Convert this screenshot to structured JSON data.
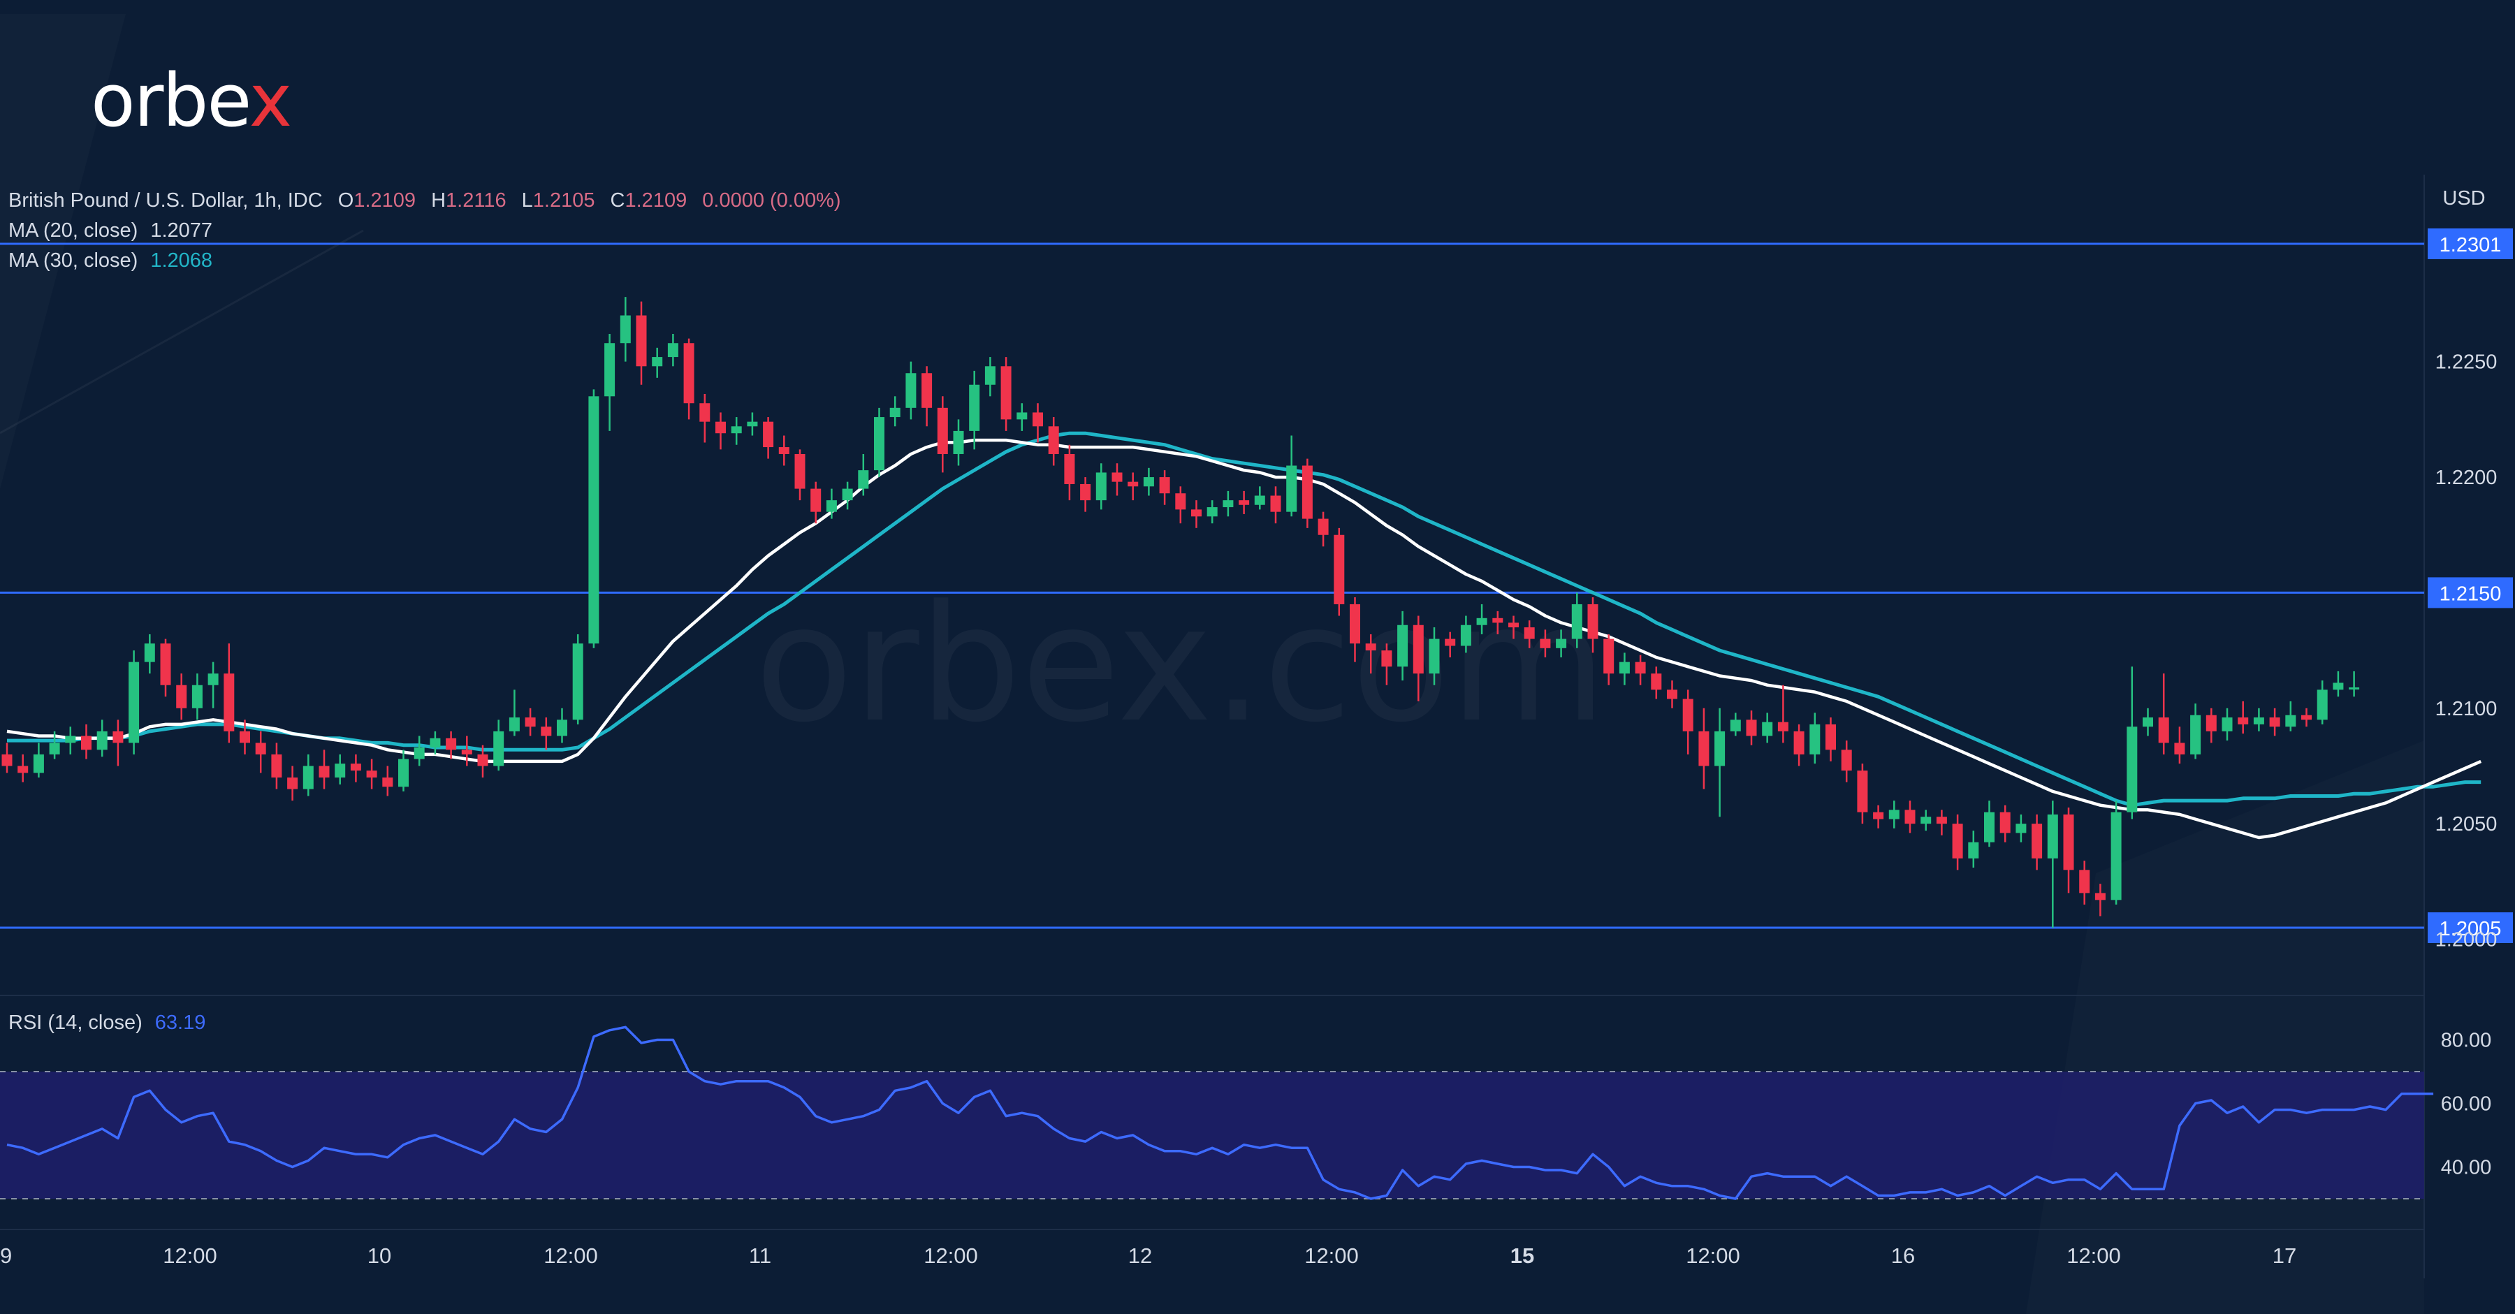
{
  "brand": {
    "logo_text_main": "orbe",
    "logo_text_x": "x",
    "watermark": "orbex.com"
  },
  "colors": {
    "background": "#0c1d35",
    "up": "#26c281",
    "down": "#f0344c",
    "ma20": "#ffffff",
    "ma30": "#1fb6c8",
    "level_line": "#2f6bff",
    "rsi_line": "#3d6bff",
    "rsi_band": "#1f1f6b"
  },
  "header": {
    "symbol": "British Pound / U.S. Dollar, 1h, IDC",
    "o_label": "O",
    "o_value": "1.2109",
    "h_label": "H",
    "h_value": "1.2116",
    "l_label": "L",
    "l_value": "1.2105",
    "c_label": "C",
    "c_value": "1.2109",
    "change": "0.0000 (0.00%)",
    "ma20_label": "MA (20, close)",
    "ma20_value": "1.2077",
    "ma30_label": "MA (30, close)",
    "ma30_value": "1.2068",
    "rsi_label": "RSI (14, close)",
    "rsi_value": "63.19"
  },
  "chart_data": {
    "type": "candlestick",
    "title": "British Pound / U.S. Dollar, 1h, IDC",
    "currency": "USD",
    "ylim": [
      1.1975,
      1.2325
    ],
    "y_ticks": [
      "1.2250",
      "1.2200",
      "1.2100",
      "1.2050",
      "1.2000"
    ],
    "x_ticks": [
      "9",
      "12:00",
      "10",
      "12:00",
      "11",
      "12:00",
      "12",
      "12:00",
      "15",
      "12:00",
      "16",
      "12:00",
      "17"
    ],
    "horizontal_levels": [
      {
        "value": 1.2301,
        "label": "1.2301"
      },
      {
        "value": 1.215,
        "label": "1.2150"
      },
      {
        "value": 1.2005,
        "label": "1.2005"
      }
    ],
    "candles": [
      [
        1.208,
        1.2075,
        1.2085,
        1.2072
      ],
      [
        1.2075,
        1.2072,
        1.208,
        1.2068
      ],
      [
        1.2072,
        1.208,
        1.2085,
        1.207
      ],
      [
        1.208,
        1.2085,
        1.209,
        1.2078
      ],
      [
        1.2085,
        1.2088,
        1.2092,
        1.208
      ],
      [
        1.2088,
        1.2082,
        1.2093,
        1.2078
      ],
      [
        1.2082,
        1.209,
        1.2095,
        1.2079
      ],
      [
        1.209,
        1.2085,
        1.2095,
        1.2075
      ],
      [
        1.2085,
        1.212,
        1.2125,
        1.208
      ],
      [
        1.212,
        1.2128,
        1.2132,
        1.2115
      ],
      [
        1.2128,
        1.211,
        1.213,
        1.2105
      ],
      [
        1.211,
        1.21,
        1.2115,
        1.2095
      ],
      [
        1.21,
        1.211,
        1.2115,
        1.2095
      ],
      [
        1.211,
        1.2115,
        1.212,
        1.21
      ],
      [
        1.2115,
        1.209,
        1.2128,
        1.2085
      ],
      [
        1.209,
        1.2085,
        1.2095,
        1.208
      ],
      [
        1.2085,
        1.208,
        1.209,
        1.2072
      ],
      [
        1.208,
        1.207,
        1.2085,
        1.2065
      ],
      [
        1.207,
        1.2065,
        1.2075,
        1.206
      ],
      [
        1.2065,
        1.2075,
        1.208,
        1.2062
      ],
      [
        1.2075,
        1.207,
        1.2082,
        1.2065
      ],
      [
        1.207,
        1.2076,
        1.208,
        1.2067
      ],
      [
        1.2076,
        1.2073,
        1.208,
        1.2068
      ],
      [
        1.2073,
        1.207,
        1.2078,
        1.2065
      ],
      [
        1.207,
        1.2066,
        1.2075,
        1.2062
      ],
      [
        1.2066,
        1.2078,
        1.2082,
        1.2064
      ],
      [
        1.2078,
        1.2083,
        1.2088,
        1.2075
      ],
      [
        1.2083,
        1.2087,
        1.209,
        1.208
      ],
      [
        1.2087,
        1.2082,
        1.209,
        1.2078
      ],
      [
        1.2082,
        1.208,
        1.2088,
        1.2075
      ],
      [
        1.208,
        1.2075,
        1.2084,
        1.207
      ],
      [
        1.2075,
        1.209,
        1.2095,
        1.2073
      ],
      [
        1.209,
        1.2096,
        1.2108,
        1.2088
      ],
      [
        1.2096,
        1.2092,
        1.21,
        1.2088
      ],
      [
        1.2092,
        1.2088,
        1.2096,
        1.2082
      ],
      [
        1.2088,
        1.2095,
        1.21,
        1.2085
      ],
      [
        1.2095,
        1.2128,
        1.2132,
        1.2093
      ],
      [
        1.2128,
        1.2235,
        1.2238,
        1.2126
      ],
      [
        1.2235,
        1.2258,
        1.2262,
        1.222
      ],
      [
        1.2258,
        1.227,
        1.2278,
        1.225
      ],
      [
        1.227,
        1.2248,
        1.2276,
        1.224
      ],
      [
        1.2248,
        1.2252,
        1.2256,
        1.2243
      ],
      [
        1.2252,
        1.2258,
        1.2262,
        1.2248
      ],
      [
        1.2258,
        1.2232,
        1.226,
        1.2225
      ],
      [
        1.2232,
        1.2224,
        1.2236,
        1.2215
      ],
      [
        1.2224,
        1.2219,
        1.2228,
        1.2212
      ],
      [
        1.2219,
        1.2222,
        1.2226,
        1.2214
      ],
      [
        1.2222,
        1.2224,
        1.2228,
        1.2218
      ],
      [
        1.2224,
        1.2213,
        1.2226,
        1.2208
      ],
      [
        1.2213,
        1.221,
        1.2218,
        1.2205
      ],
      [
        1.221,
        1.2195,
        1.2212,
        1.219
      ],
      [
        1.2195,
        1.2185,
        1.2198,
        1.218
      ],
      [
        1.2185,
        1.219,
        1.2195,
        1.2182
      ],
      [
        1.219,
        1.2195,
        1.2198,
        1.2186
      ],
      [
        1.2195,
        1.2203,
        1.221,
        1.2192
      ],
      [
        1.2203,
        1.2226,
        1.223,
        1.22
      ],
      [
        1.2226,
        1.223,
        1.2235,
        1.2222
      ],
      [
        1.223,
        1.2245,
        1.225,
        1.2225
      ],
      [
        1.2245,
        1.223,
        1.2248,
        1.2222
      ],
      [
        1.223,
        1.221,
        1.2235,
        1.2202
      ],
      [
        1.221,
        1.222,
        1.2225,
        1.2205
      ],
      [
        1.222,
        1.224,
        1.2246,
        1.2212
      ],
      [
        1.224,
        1.2248,
        1.2252,
        1.2235
      ],
      [
        1.2248,
        1.2225,
        1.2252,
        1.222
      ],
      [
        1.2225,
        1.2228,
        1.2232,
        1.222
      ],
      [
        1.2228,
        1.2222,
        1.2232,
        1.2215
      ],
      [
        1.2222,
        1.221,
        1.2226,
        1.2205
      ],
      [
        1.221,
        1.2197,
        1.2214,
        1.219
      ],
      [
        1.2197,
        1.219,
        1.22,
        1.2185
      ],
      [
        1.219,
        1.2202,
        1.2206,
        1.2186
      ],
      [
        1.2202,
        1.2198,
        1.2206,
        1.2192
      ],
      [
        1.2198,
        1.2196,
        1.2202,
        1.219
      ],
      [
        1.2196,
        1.22,
        1.2204,
        1.2192
      ],
      [
        1.22,
        1.2193,
        1.2203,
        1.2188
      ],
      [
        1.2193,
        1.2186,
        1.2196,
        1.218
      ],
      [
        1.2186,
        1.2183,
        1.219,
        1.2178
      ],
      [
        1.2183,
        1.2187,
        1.219,
        1.218
      ],
      [
        1.2187,
        1.219,
        1.2194,
        1.2183
      ],
      [
        1.219,
        1.2188,
        1.2194,
        1.2184
      ],
      [
        1.2188,
        1.2192,
        1.2196,
        1.2186
      ],
      [
        1.2192,
        1.2185,
        1.2196,
        1.218
      ],
      [
        1.2185,
        1.2205,
        1.2218,
        1.2183
      ],
      [
        1.2205,
        1.2182,
        1.2208,
        1.2178
      ],
      [
        1.2182,
        1.2175,
        1.2185,
        1.217
      ],
      [
        1.2175,
        1.2145,
        1.2178,
        1.214
      ],
      [
        1.2145,
        1.2128,
        1.2148,
        1.212
      ],
      [
        1.2128,
        1.2125,
        1.2132,
        1.2115
      ],
      [
        1.2125,
        1.2118,
        1.2128,
        1.211
      ],
      [
        1.2118,
        1.2136,
        1.2142,
        1.2112
      ],
      [
        1.2136,
        1.2115,
        1.214,
        1.2103
      ],
      [
        1.2115,
        1.213,
        1.2135,
        1.211
      ],
      [
        1.213,
        1.2127,
        1.2133,
        1.2122
      ],
      [
        1.2127,
        1.2136,
        1.214,
        1.2124
      ],
      [
        1.2136,
        1.2139,
        1.2145,
        1.2132
      ],
      [
        1.2139,
        1.2137,
        1.2142,
        1.2132
      ],
      [
        1.2137,
        1.2135,
        1.214,
        1.213
      ],
      [
        1.2135,
        1.213,
        1.2138,
        1.2126
      ],
      [
        1.213,
        1.2126,
        1.2134,
        1.2122
      ],
      [
        1.2126,
        1.213,
        1.2134,
        1.2122
      ],
      [
        1.213,
        1.2145,
        1.215,
        1.2126
      ],
      [
        1.2145,
        1.213,
        1.2148,
        1.2124
      ],
      [
        1.213,
        1.2115,
        1.2132,
        1.211
      ],
      [
        1.2115,
        1.212,
        1.2124,
        1.211
      ],
      [
        1.212,
        1.2115,
        1.2123,
        1.211
      ],
      [
        1.2115,
        1.2108,
        1.2118,
        1.2104
      ],
      [
        1.2108,
        1.2104,
        1.2112,
        1.21
      ],
      [
        1.2104,
        1.209,
        1.2108,
        1.208
      ],
      [
        1.209,
        1.2075,
        1.21,
        1.2065
      ],
      [
        1.2075,
        1.209,
        1.21,
        1.2053
      ],
      [
        1.209,
        1.2095,
        1.2098,
        1.2088
      ],
      [
        1.2095,
        1.2088,
        1.2099,
        1.2084
      ],
      [
        1.2088,
        1.2094,
        1.2098,
        1.2085
      ],
      [
        1.2094,
        1.209,
        1.211,
        1.2085
      ],
      [
        1.209,
        1.208,
        1.2093,
        1.2075
      ],
      [
        1.208,
        1.2093,
        1.2098,
        1.2076
      ],
      [
        1.2093,
        1.2082,
        1.2096,
        1.2077
      ],
      [
        1.2082,
        1.2073,
        1.2086,
        1.2068
      ],
      [
        1.2073,
        1.2055,
        1.2076,
        1.205
      ],
      [
        1.2055,
        1.2052,
        1.2058,
        1.2048
      ],
      [
        1.2052,
        1.2056,
        1.206,
        1.2048
      ],
      [
        1.2056,
        1.205,
        1.206,
        1.2046
      ],
      [
        1.205,
        1.2053,
        1.2056,
        1.2047
      ],
      [
        1.2053,
        1.205,
        1.2056,
        1.2045
      ],
      [
        1.205,
        1.2035,
        1.2054,
        1.203
      ],
      [
        1.2035,
        1.2042,
        1.2047,
        1.2031
      ],
      [
        1.2042,
        1.2055,
        1.206,
        1.204
      ],
      [
        1.2055,
        1.2046,
        1.2058,
        1.2042
      ],
      [
        1.2046,
        1.205,
        1.2054,
        1.2042
      ],
      [
        1.205,
        1.2035,
        1.2054,
        1.203
      ],
      [
        1.2035,
        1.2054,
        1.206,
        1.2005
      ],
      [
        1.2054,
        1.203,
        1.2057,
        1.202
      ],
      [
        1.203,
        1.202,
        1.2034,
        1.2015
      ],
      [
        1.202,
        1.2017,
        1.2024,
        1.201
      ],
      [
        1.2017,
        1.2055,
        1.206,
        1.2015
      ],
      [
        1.2055,
        1.2092,
        1.2118,
        1.2052
      ],
      [
        1.2092,
        1.2096,
        1.21,
        1.2088
      ],
      [
        1.2096,
        1.2085,
        1.2115,
        1.208
      ],
      [
        1.2085,
        1.208,
        1.2092,
        1.2076
      ],
      [
        1.208,
        1.2097,
        1.2102,
        1.2078
      ],
      [
        1.2097,
        1.209,
        1.21,
        1.2085
      ],
      [
        1.209,
        1.2096,
        1.21,
        1.2086
      ],
      [
        1.2096,
        1.2093,
        1.2103,
        1.2089
      ],
      [
        1.2093,
        1.2096,
        1.21,
        1.209
      ],
      [
        1.2096,
        1.2092,
        1.21,
        1.2088
      ],
      [
        1.2092,
        1.2097,
        1.2103,
        1.209
      ],
      [
        1.2097,
        1.2095,
        1.21,
        1.2092
      ],
      [
        1.2095,
        1.2108,
        1.2112,
        1.2093
      ],
      [
        1.2108,
        1.2111,
        1.2116,
        1.2105
      ],
      [
        1.2109,
        1.2109,
        1.2116,
        1.2105
      ]
    ],
    "ma20": [
      1.209,
      1.2089,
      1.2088,
      1.2088,
      1.2087,
      1.2087,
      1.2087,
      1.2087,
      1.2089,
      1.2092,
      1.2093,
      1.2093,
      1.2094,
      1.2095,
      1.2094,
      1.2093,
      1.2092,
      1.2091,
      1.2089,
      1.2088,
      1.2087,
      1.2086,
      1.2085,
      1.2084,
      1.2082,
      1.2081,
      1.208,
      1.208,
      1.2079,
      1.2078,
      1.2077,
      1.2077,
      1.2077,
      1.2077,
      1.2077,
      1.2077,
      1.208,
      1.2087,
      1.2096,
      1.2105,
      1.2113,
      1.2121,
      1.2129,
      1.2135,
      1.2141,
      1.2147,
      1.2153,
      1.216,
      1.2166,
      1.2171,
      1.2176,
      1.218,
      1.2185,
      1.219,
      1.2196,
      1.2201,
      1.2205,
      1.221,
      1.2213,
      1.2215,
      1.2215,
      1.2216,
      1.2216,
      1.2216,
      1.2215,
      1.2214,
      1.2214,
      1.2213,
      1.2213,
      1.2213,
      1.2213,
      1.2213,
      1.2212,
      1.2211,
      1.221,
      1.2209,
      1.2207,
      1.2205,
      1.2203,
      1.2202,
      1.22,
      1.22,
      1.2199,
      1.2197,
      1.2193,
      1.2189,
      1.2184,
      1.2179,
      1.2175,
      1.217,
      1.2166,
      1.2162,
      1.2158,
      1.2155,
      1.2151,
      1.2147,
      1.2144,
      1.214,
      1.2137,
      1.2135,
      1.2133,
      1.2131,
      1.2128,
      1.2125,
      1.2122,
      1.212,
      1.2118,
      1.2116,
      1.2114,
      1.2113,
      1.2112,
      1.211,
      1.2109,
      1.2108,
      1.2107,
      1.2105,
      1.2103,
      1.21,
      1.2097,
      1.2094,
      1.2091,
      1.2088,
      1.2085,
      1.2082,
      1.2079,
      1.2076,
      1.2073,
      1.207,
      1.2067,
      1.2064,
      1.2062,
      1.206,
      1.2058,
      1.2057,
      1.2056,
      1.2056,
      1.2055,
      1.2054,
      1.2052,
      1.205,
      1.2048,
      1.2046,
      1.2044,
      1.2045,
      1.2047,
      1.2049,
      1.2051,
      1.2053,
      1.2055,
      1.2057,
      1.2059,
      1.2062,
      1.2065,
      1.2068,
      1.2071,
      1.2074,
      1.2077
    ],
    "ma30": [
      1.2086,
      1.2086,
      1.2086,
      1.2086,
      1.2086,
      1.2087,
      1.2087,
      1.2087,
      1.2088,
      1.209,
      1.2091,
      1.2092,
      1.2093,
      1.2093,
      1.2093,
      1.2092,
      1.2091,
      1.209,
      1.2089,
      1.2088,
      1.2087,
      1.2087,
      1.2086,
      1.2085,
      1.2085,
      1.2084,
      1.2084,
      1.2083,
      1.2083,
      1.2083,
      1.2082,
      1.2082,
      1.2082,
      1.2082,
      1.2082,
      1.2082,
      1.2083,
      1.2087,
      1.2091,
      1.2096,
      1.2101,
      1.2106,
      1.2111,
      1.2116,
      1.2121,
      1.2126,
      1.2131,
      1.2136,
      1.2141,
      1.2145,
      1.215,
      1.2155,
      1.216,
      1.2165,
      1.217,
      1.2175,
      1.218,
      1.2185,
      1.219,
      1.2195,
      1.2199,
      1.2203,
      1.2207,
      1.2211,
      1.2214,
      1.2216,
      1.2218,
      1.2219,
      1.2219,
      1.2218,
      1.2217,
      1.2216,
      1.2215,
      1.2214,
      1.2212,
      1.221,
      1.2208,
      1.2207,
      1.2206,
      1.2205,
      1.2204,
      1.2203,
      1.2202,
      1.2201,
      1.2199,
      1.2196,
      1.2193,
      1.219,
      1.2187,
      1.2183,
      1.218,
      1.2177,
      1.2174,
      1.2171,
      1.2168,
      1.2165,
      1.2162,
      1.2159,
      1.2156,
      1.2153,
      1.215,
      1.2147,
      1.2144,
      1.2141,
      1.2137,
      1.2134,
      1.2131,
      1.2128,
      1.2125,
      1.2123,
      1.2121,
      1.2119,
      1.2117,
      1.2115,
      1.2113,
      1.2111,
      1.2109,
      1.2107,
      1.2105,
      1.2102,
      1.2099,
      1.2096,
      1.2093,
      1.209,
      1.2087,
      1.2084,
      1.2081,
      1.2078,
      1.2075,
      1.2072,
      1.2069,
      1.2066,
      1.2063,
      1.206,
      1.2058,
      1.2059,
      1.206,
      1.206,
      1.206,
      1.206,
      1.206,
      1.2061,
      1.2061,
      1.2061,
      1.2062,
      1.2062,
      1.2062,
      1.2062,
      1.2063,
      1.2063,
      1.2064,
      1.2065,
      1.2066,
      1.2066,
      1.2067,
      1.2068,
      1.2068
    ],
    "rsi": {
      "ylim": [
        15,
        95
      ],
      "y_ticks": [
        "80.00",
        "60.00",
        "40.00"
      ],
      "levels": [
        70,
        30
      ],
      "values": [
        47,
        46,
        44,
        46,
        48,
        50,
        52,
        49,
        62,
        64,
        58,
        54,
        56,
        57,
        48,
        47,
        45,
        42,
        40,
        42,
        46,
        45,
        44,
        44,
        43,
        47,
        49,
        50,
        48,
        46,
        44,
        48,
        55,
        52,
        51,
        55,
        65,
        81,
        83,
        84,
        79,
        80,
        80,
        70,
        67,
        66,
        67,
        67,
        67,
        65,
        62,
        56,
        54,
        55,
        56,
        58,
        64,
        65,
        67,
        60,
        57,
        62,
        64,
        56,
        57,
        56,
        52,
        49,
        48,
        51,
        49,
        50,
        47,
        45,
        45,
        44,
        46,
        44,
        47,
        46,
        47,
        46,
        46,
        36,
        33,
        32,
        30,
        31,
        39,
        34,
        37,
        36,
        41,
        42,
        41,
        40,
        40,
        39,
        39,
        38,
        44,
        40,
        34,
        37,
        35,
        34,
        34,
        33,
        31,
        30,
        37,
        38,
        37,
        37,
        37,
        34,
        37,
        34,
        31,
        31,
        32,
        32,
        33,
        31,
        32,
        34,
        31,
        34,
        37,
        35,
        36,
        36,
        33,
        38,
        33,
        33,
        33,
        53,
        60,
        61,
        57,
        59,
        54,
        58,
        58,
        57,
        58,
        58,
        58,
        59,
        58,
        63,
        63,
        63
      ]
    }
  }
}
